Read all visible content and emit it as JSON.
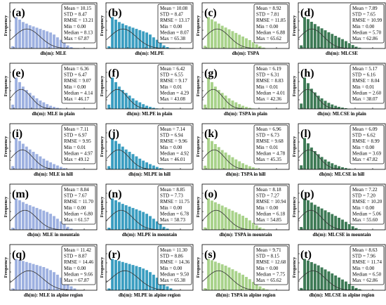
{
  "figure": {
    "rows": [
      "all",
      "plain",
      "hill",
      "mountain",
      "alpine"
    ],
    "cols": [
      "MLE",
      "MLPE",
      "TSPA",
      "MLCSE"
    ],
    "colors": {
      "MLE": "#9db0e0",
      "MLPE": "#3a9dc0",
      "TSPA": "#a8d28a",
      "MLCSE": "#3d7a55",
      "curve": "#333333",
      "box_border": "#222222",
      "text": "#000000"
    }
  },
  "chart_data": [
    {
      "panel": "a",
      "type": "bar",
      "xlabel": "dh(m): MLE",
      "ylabel": "Frequency",
      "values": [
        0.006,
        0.078,
        0.072,
        0.066,
        0.062,
        0.058,
        0.055,
        0.052,
        0.049,
        0.046,
        0.043,
        0.04,
        0.035,
        0.028,
        0.022,
        0.015,
        0.008,
        0.004
      ],
      "curve": {
        "mean": 10.15,
        "std": 8.47
      },
      "stats": {
        "Mean": "10.15",
        "STD": "8.47",
        "RMSE": "13.21",
        "Min": "0.00",
        "Median": "8.13",
        "Max": "67.87"
      }
    },
    {
      "panel": "b",
      "type": "bar",
      "xlabel": "dh(m): MLPE",
      "ylabel": "Frequency",
      "values": [
        0.006,
        0.078,
        0.072,
        0.066,
        0.062,
        0.058,
        0.055,
        0.052,
        0.049,
        0.046,
        0.043,
        0.04,
        0.035,
        0.028,
        0.022,
        0.015,
        0.008,
        0.004
      ],
      "curve": {
        "mean": 10.08,
        "std": 8.47
      },
      "stats": {
        "Mean": "10.08",
        "STD": "8.47",
        "RMSE": "13.17",
        "Min": "0.00",
        "Median": "8.07",
        "Max": "65.38"
      }
    },
    {
      "panel": "c",
      "type": "bar",
      "xlabel": "dh(m): TSPA",
      "ylabel": "Frequency",
      "values": [
        0.008,
        0.088,
        0.082,
        0.076,
        0.07,
        0.064,
        0.059,
        0.054,
        0.049,
        0.044,
        0.039,
        0.034,
        0.029,
        0.024,
        0.018,
        0.012,
        0.007,
        0.003
      ],
      "curve": {
        "mean": 8.92,
        "std": 7.81
      },
      "stats": {
        "Mean": "8.92",
        "STD": "7.81",
        "RMSE": "11.85",
        "Min": "0.00",
        "Median": "6.88",
        "Max": "65.62"
      }
    },
    {
      "panel": "d",
      "type": "bar",
      "xlabel": "dh(m): MLCSE",
      "ylabel": "Frequency",
      "values": [
        0.01,
        0.096,
        0.09,
        0.082,
        0.075,
        0.068,
        0.062,
        0.056,
        0.05,
        0.045,
        0.039,
        0.034,
        0.029,
        0.023,
        0.017,
        0.011,
        0.006,
        0.003
      ],
      "curve": {
        "mean": 7.89,
        "std": 7.65
      },
      "stats": {
        "Mean": "7.89",
        "STD": "7.65",
        "RMSE": "10.99",
        "Min": "0.00",
        "Median": "5.70",
        "Max": "62.86"
      }
    },
    {
      "panel": "e",
      "type": "bar",
      "xlabel": "dh(m): MLE in plain",
      "ylabel": "Frequency",
      "values": [
        0.02,
        0.14,
        0.12,
        0.1,
        0.085,
        0.072,
        0.06,
        0.048,
        0.038,
        0.03,
        0.022,
        0.015,
        0.01,
        0.006,
        0.003,
        0.001
      ],
      "curve": {
        "mean": 6.36,
        "std": 6.47
      },
      "stats": {
        "Mean": "6.36",
        "STD": "6.47",
        "RMSE": "9.07",
        "Min": "0.00",
        "Median": "4.14",
        "Max": "46.17"
      }
    },
    {
      "panel": "f",
      "type": "bar",
      "xlabel": "dh(m): MLPE in plain",
      "ylabel": "Frequency",
      "values": [
        0.02,
        0.14,
        0.12,
        0.1,
        0.085,
        0.072,
        0.06,
        0.048,
        0.038,
        0.03,
        0.022,
        0.015,
        0.01,
        0.006,
        0.003,
        0.001
      ],
      "curve": {
        "mean": 6.42,
        "std": 6.55
      },
      "stats": {
        "Mean": "6.42",
        "STD": "6.55",
        "RMSE": "9.17",
        "Min": "0.01",
        "Median": "4.29",
        "Max": "43.08"
      }
    },
    {
      "panel": "g",
      "type": "bar",
      "xlabel": "dh(m): TSPA in plain",
      "ylabel": "Frequency",
      "values": [
        0.02,
        0.14,
        0.12,
        0.1,
        0.085,
        0.072,
        0.06,
        0.048,
        0.038,
        0.03,
        0.022,
        0.015,
        0.01,
        0.006,
        0.003,
        0.001
      ],
      "curve": {
        "mean": 6.19,
        "std": 6.31
      },
      "stats": {
        "Mean": "6.19",
        "STD": "6.31",
        "RMSE": "8.83",
        "Min": "0.01",
        "Median": "4.01",
        "Max": "42.36"
      }
    },
    {
      "panel": "h",
      "type": "bar",
      "xlabel": "dh(m): MLCSE in plain",
      "ylabel": "Frequency",
      "values": [
        0.03,
        0.17,
        0.14,
        0.11,
        0.09,
        0.072,
        0.058,
        0.045,
        0.034,
        0.025,
        0.018,
        0.012,
        0.008,
        0.005,
        0.002,
        0.001
      ],
      "curve": {
        "mean": 5.17,
        "std": 6.16
      },
      "stats": {
        "Mean": "5.17",
        "STD": "6.16",
        "RMSE": "8.04",
        "Min": "0.01",
        "Median": "2.60",
        "Max": "38.07"
      }
    },
    {
      "panel": "i",
      "type": "bar",
      "xlabel": "dh(m): MLE in hill",
      "ylabel": "Frequency",
      "values": [
        0.012,
        0.11,
        0.1,
        0.09,
        0.08,
        0.07,
        0.062,
        0.054,
        0.046,
        0.038,
        0.031,
        0.025,
        0.019,
        0.014,
        0.009,
        0.005,
        0.002
      ],
      "curve": {
        "mean": 7.11,
        "std": 6.97
      },
      "stats": {
        "Mean": "7.11",
        "STD": "6.97",
        "RMSE": "9.95",
        "Min": "0.01",
        "Median": "4.97",
        "Max": "49.12"
      }
    },
    {
      "panel": "j",
      "type": "bar",
      "xlabel": "dh(m): MLPE in hill",
      "ylabel": "Frequency",
      "values": [
        0.012,
        0.11,
        0.1,
        0.09,
        0.08,
        0.07,
        0.062,
        0.054,
        0.046,
        0.038,
        0.031,
        0.025,
        0.019,
        0.014,
        0.009,
        0.005,
        0.002
      ],
      "curve": {
        "mean": 7.14,
        "std": 6.94
      },
      "stats": {
        "Mean": "7.14",
        "STD": "6.94",
        "RMSE": "9.96",
        "Min": "0.00",
        "Median": "4.92",
        "Max": "46.01"
      }
    },
    {
      "panel": "k",
      "type": "bar",
      "xlabel": "dh(m): TSPA in hill",
      "ylabel": "Frequency",
      "values": [
        0.014,
        0.115,
        0.104,
        0.093,
        0.082,
        0.071,
        0.062,
        0.053,
        0.045,
        0.037,
        0.03,
        0.023,
        0.017,
        0.012,
        0.008,
        0.004,
        0.002
      ],
      "curve": {
        "mean": 6.96,
        "std": 6.73
      },
      "stats": {
        "Mean": "6.96",
        "STD": "6.73",
        "RMSE": "9.68",
        "Min": "0.01",
        "Median": "4.78",
        "Max": "45.35"
      }
    },
    {
      "panel": "l",
      "type": "bar",
      "xlabel": "dh(m): MLCSE in hill",
      "ylabel": "Frequency",
      "values": [
        0.02,
        0.15,
        0.125,
        0.105,
        0.088,
        0.073,
        0.06,
        0.048,
        0.038,
        0.03,
        0.022,
        0.016,
        0.011,
        0.007,
        0.004,
        0.002,
        0.001
      ],
      "curve": {
        "mean": 6.09,
        "std": 6.62
      },
      "stats": {
        "Mean": "6.09",
        "STD": "6.62",
        "RMSE": "8.99",
        "Min": "0.00",
        "Median": "3.69",
        "Max": "47.82"
      }
    },
    {
      "panel": "m",
      "type": "bar",
      "xlabel": "dh(m): MLE in mountain",
      "ylabel": "Frequency",
      "values": [
        0.005,
        0.07,
        0.066,
        0.062,
        0.058,
        0.055,
        0.052,
        0.049,
        0.046,
        0.043,
        0.04,
        0.036,
        0.031,
        0.025,
        0.019,
        0.013,
        0.007,
        0.003
      ],
      "curve": {
        "mean": 8.84,
        "std": 7.67
      },
      "stats": {
        "Mean": "8.84",
        "STD": "7.67",
        "RMSE": "11.70",
        "Min": "0.00",
        "Median": "6.80",
        "Max": "61.57"
      }
    },
    {
      "panel": "n",
      "type": "bar",
      "xlabel": "dh(m): MLPE in mountain",
      "ylabel": "Frequency",
      "values": [
        0.005,
        0.07,
        0.066,
        0.062,
        0.058,
        0.055,
        0.052,
        0.049,
        0.046,
        0.043,
        0.04,
        0.036,
        0.031,
        0.025,
        0.019,
        0.013,
        0.007,
        0.003
      ],
      "curve": {
        "mean": 8.85,
        "std": 7.73
      },
      "stats": {
        "Mean": "8.85",
        "STD": "7.73",
        "RMSE": "11.75",
        "Min": "0.00",
        "Median": "6.78",
        "Max": "58.73"
      }
    },
    {
      "panel": "o",
      "type": "bar",
      "xlabel": "dh(m): TSPA in mountain",
      "ylabel": "Frequency",
      "values": [
        0.006,
        0.075,
        0.07,
        0.066,
        0.062,
        0.058,
        0.054,
        0.05,
        0.046,
        0.042,
        0.038,
        0.034,
        0.029,
        0.023,
        0.017,
        0.011,
        0.006,
        0.003
      ],
      "curve": {
        "mean": 8.18,
        "std": 7.27
      },
      "stats": {
        "Mean": "8.18",
        "STD": "7.27",
        "RMSE": "10.94",
        "Min": "0.00",
        "Median": "6.18",
        "Max": "54.85"
      }
    },
    {
      "panel": "p",
      "type": "bar",
      "xlabel": "dh(m): MLCSE in mountain",
      "ylabel": "Frequency",
      "values": [
        0.008,
        0.085,
        0.08,
        0.074,
        0.068,
        0.063,
        0.058,
        0.053,
        0.048,
        0.043,
        0.038,
        0.033,
        0.028,
        0.022,
        0.016,
        0.01,
        0.005,
        0.002
      ],
      "curve": {
        "mean": 7.22,
        "std": 7.2
      },
      "stats": {
        "Mean": "7.22",
        "STD": "7.20",
        "RMSE": "10.20",
        "Min": "0.00",
        "Median": "5.06",
        "Max": "55.60"
      }
    },
    {
      "panel": "q",
      "type": "bar",
      "xlabel": "dh(m): MLE in alpine region",
      "ylabel": "Frequency",
      "values": [
        0.004,
        0.062,
        0.06,
        0.058,
        0.056,
        0.054,
        0.052,
        0.05,
        0.048,
        0.046,
        0.043,
        0.04,
        0.036,
        0.031,
        0.025,
        0.019,
        0.013,
        0.008,
        0.004
      ],
      "curve": {
        "mean": 11.42,
        "std": 8.87
      },
      "stats": {
        "Mean": "11.42",
        "STD": "8.87",
        "RMSE": "14.46",
        "Min": "0.00",
        "Median": "9.66",
        "Max": "67.87"
      }
    },
    {
      "panel": "r",
      "type": "bar",
      "xlabel": "dh(m): MLPE in alpine region",
      "ylabel": "Frequency",
      "values": [
        0.004,
        0.062,
        0.06,
        0.058,
        0.056,
        0.054,
        0.052,
        0.05,
        0.048,
        0.046,
        0.043,
        0.04,
        0.036,
        0.031,
        0.025,
        0.019,
        0.013,
        0.008,
        0.004
      ],
      "curve": {
        "mean": 11.3,
        "std": 8.86
      },
      "stats": {
        "Mean": "11.30",
        "STD": "8.86",
        "RMSE": "14.36",
        "Min": "0.00",
        "Median": "9.50",
        "Max": "65.38"
      }
    },
    {
      "panel": "s",
      "type": "bar",
      "xlabel": "dh(m): TSPA in alpine region",
      "ylabel": "Frequency",
      "values": [
        0.005,
        0.07,
        0.067,
        0.064,
        0.061,
        0.058,
        0.055,
        0.051,
        0.047,
        0.043,
        0.039,
        0.035,
        0.03,
        0.025,
        0.019,
        0.014,
        0.009,
        0.005,
        0.002
      ],
      "curve": {
        "mean": 9.71,
        "std": 8.15
      },
      "stats": {
        "Mean": "9.71",
        "STD": "8.15",
        "RMSE": "12.68",
        "Min": "0.00",
        "Median": "7.75",
        "Max": "65.62"
      }
    },
    {
      "panel": "t",
      "type": "bar",
      "xlabel": "dh(m): MLCSE in alpine region",
      "ylabel": "Frequency",
      "values": [
        0.006,
        0.078,
        0.074,
        0.07,
        0.066,
        0.062,
        0.057,
        0.052,
        0.047,
        0.042,
        0.037,
        0.032,
        0.027,
        0.022,
        0.016,
        0.011,
        0.006,
        0.003
      ],
      "curve": {
        "mean": 8.63,
        "std": 7.96
      },
      "stats": {
        "Mean": "8.63",
        "STD": "7.96",
        "RMSE": "11.74",
        "Min": "0.00",
        "Median": "6.50",
        "Max": "62.86"
      }
    }
  ]
}
